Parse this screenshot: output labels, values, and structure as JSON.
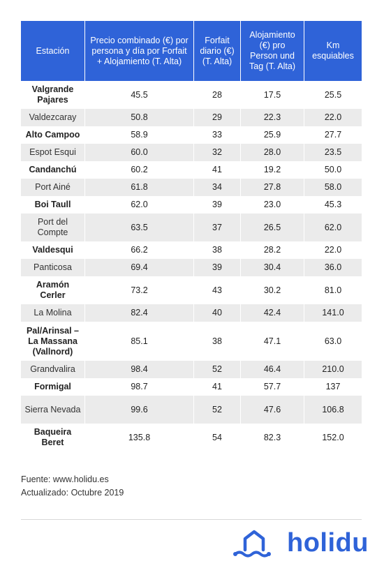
{
  "table": {
    "headers": [
      "Estación",
      "Precio combinado (€) por persona y día por Forfait + Alojamiento (T. Alta)",
      "Forfait diario (€) (T. Alta)",
      "Alojamiento (€) pro Person und Tag  (T. Alta)",
      "Km esquiables"
    ],
    "rows": [
      [
        "Valgrande Pajares",
        "45.5",
        "28",
        "17.5",
        "25.5"
      ],
      [
        "Valdezcaray",
        "50.8",
        "29",
        "22.3",
        "22.0"
      ],
      [
        "Alto Campoo",
        "58.9",
        "33",
        "25.9",
        "27.7"
      ],
      [
        "Espot Esqui",
        "60.0",
        "32",
        "28.0",
        "23.5"
      ],
      [
        "Candanchú",
        "60.2",
        "41",
        "19.2",
        "50.0"
      ],
      [
        "Port Ainé",
        "61.8",
        "34",
        "27.8",
        "58.0"
      ],
      [
        "Boi Taull",
        "62.0",
        "39",
        "23.0",
        "45.3"
      ],
      [
        "Port del Compte",
        "63.5",
        "37",
        "26.5",
        "62.0"
      ],
      [
        "Valdesqui",
        "66.2",
        "38",
        "28.2",
        "22.0"
      ],
      [
        "Panticosa",
        "69.4",
        "39",
        "30.4",
        "36.0"
      ],
      [
        "Aramón Cerler",
        "73.2",
        "43",
        "30.2",
        "81.0"
      ],
      [
        "La Molina",
        "82.4",
        "40",
        "42.4",
        "141.0"
      ],
      [
        "Pal/Arinsal – La Massana (Vallnord)",
        "85.1",
        "38",
        "47.1",
        "63.0"
      ],
      [
        "Grandvalira",
        "98.4",
        "52",
        "46.4",
        "210.0"
      ],
      [
        "Formigal",
        "98.7",
        "41",
        "57.7",
        "137"
      ],
      [
        "Sierra Nevada",
        "99.6",
        "52",
        "47.6",
        "106.8"
      ],
      [
        "Baqueira Beret",
        "135.8",
        "54",
        "82.3",
        "152.0"
      ]
    ]
  },
  "footer": {
    "source": "Fuente: www.holidu.es",
    "updated": "Actualizado: Octubre 2019"
  },
  "logo": {
    "text": "holidu",
    "color": "#2f63d8",
    "icon": "house-wave-icon"
  },
  "colors": {
    "header_bg": "#2f63d8",
    "alt_row_bg": "#ebebeb"
  }
}
